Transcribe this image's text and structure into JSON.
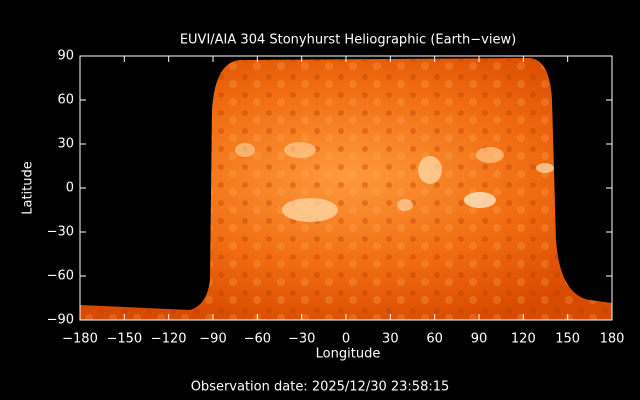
{
  "chart_data": {
    "type": "image",
    "title": "EUVI/AIA 304 Stonyhurst Heliographic (Earth−view)",
    "x_label": "Longitude",
    "y_label": "Latitude",
    "annotation": "Observation date: 2025/12/30 23:58:15",
    "xlim": [
      -180,
      180
    ],
    "xticks": [
      {
        "value": -180,
        "label": "−180"
      },
      {
        "value": -150,
        "label": "−150"
      },
      {
        "value": -120,
        "label": "−120"
      },
      {
        "value": -90,
        "label": "−90"
      },
      {
        "value": -60,
        "label": "−60"
      },
      {
        "value": -30,
        "label": "−30"
      },
      0,
      30,
      60,
      90,
      120,
      150,
      180
    ],
    "ylim": [
      -90,
      90
    ],
    "yticks": [
      {
        "value": -90,
        "label": "−90"
      },
      {
        "value": -60,
        "label": "−60"
      },
      {
        "value": -30,
        "label": "−30"
      },
      0,
      30,
      60,
      90
    ]
  }
}
